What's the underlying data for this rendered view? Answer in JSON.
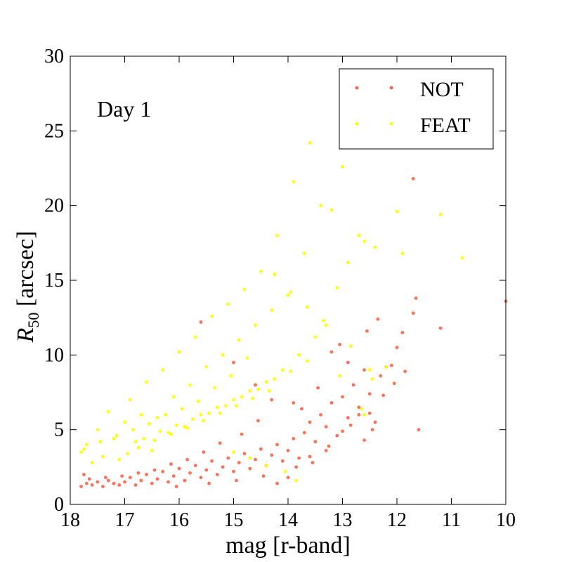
{
  "chart_data": {
    "type": "scatter",
    "annotation": "Day 1",
    "xlabel": "mag [r-band]",
    "ylabel_main": "R",
    "ylabel_sub": "50",
    "ylabel_rest": " [arcsec]",
    "xlim": [
      18,
      10
    ],
    "ylim": [
      0,
      30
    ],
    "x_inverted": true,
    "xticks": [
      "18",
      "17",
      "16",
      "15",
      "14",
      "13",
      "12",
      "11",
      "10"
    ],
    "yticks": [
      "0",
      "5",
      "10",
      "15",
      "20",
      "25",
      "30"
    ],
    "legend_position": "top-right",
    "series": [
      {
        "name": "NOT",
        "color": "#ff6347",
        "points": [
          [
            17.8,
            1.2
          ],
          [
            17.7,
            1.4
          ],
          [
            17.6,
            1.3
          ],
          [
            17.5,
            1.5
          ],
          [
            17.4,
            1.2
          ],
          [
            17.3,
            1.6
          ],
          [
            17.2,
            1.4
          ],
          [
            17.1,
            1.3
          ],
          [
            17.0,
            1.5
          ],
          [
            16.9,
            1.8
          ],
          [
            16.8,
            1.3
          ],
          [
            16.7,
            1.6
          ],
          [
            16.6,
            2.0
          ],
          [
            16.5,
            1.4
          ],
          [
            16.4,
            1.7
          ],
          [
            16.3,
            2.2
          ],
          [
            16.2,
            1.5
          ],
          [
            16.1,
            1.9
          ],
          [
            16.0,
            2.4
          ],
          [
            15.9,
            1.6
          ],
          [
            15.8,
            2.1
          ],
          [
            15.7,
            2.6
          ],
          [
            15.6,
            1.8
          ],
          [
            15.5,
            2.3
          ],
          [
            15.4,
            2.9
          ],
          [
            15.3,
            2.0
          ],
          [
            15.2,
            2.5
          ],
          [
            15.1,
            3.1
          ],
          [
            15.0,
            2.2
          ],
          [
            14.9,
            2.8
          ],
          [
            14.8,
            3.4
          ],
          [
            14.7,
            2.4
          ],
          [
            14.6,
            3.0
          ],
          [
            14.5,
            3.7
          ],
          [
            14.4,
            2.6
          ],
          [
            14.3,
            3.3
          ],
          [
            14.2,
            4.0
          ],
          [
            14.1,
            2.9
          ],
          [
            14.0,
            3.6
          ],
          [
            13.9,
            4.4
          ],
          [
            13.8,
            3.1
          ],
          [
            13.7,
            4.8
          ],
          [
            13.6,
            5.5
          ],
          [
            13.5,
            4.2
          ],
          [
            13.4,
            6.0
          ],
          [
            13.3,
            5.2
          ],
          [
            13.2,
            6.8
          ],
          [
            13.1,
            4.6
          ],
          [
            13.0,
            7.2
          ],
          [
            12.9,
            5.8
          ],
          [
            12.8,
            8.0
          ],
          [
            12.7,
            6.5
          ],
          [
            12.6,
            9.0
          ],
          [
            12.5,
            7.4
          ],
          [
            12.4,
            5.5
          ],
          [
            12.3,
            8.6
          ],
          [
            12.2,
            9.2
          ],
          [
            12.0,
            10.5
          ],
          [
            11.9,
            11.5
          ],
          [
            11.7,
            12.8
          ],
          [
            11.65,
            13.8
          ],
          [
            11.6,
            5.0
          ],
          [
            11.2,
            11.8
          ],
          [
            11.7,
            21.8
          ],
          [
            10.0,
            13.6
          ],
          [
            12.5,
            6.1
          ],
          [
            13.0,
            4.9
          ],
          [
            13.3,
            3.6
          ],
          [
            14.0,
            1.8
          ],
          [
            14.2,
            1.4
          ],
          [
            15.6,
            12.2
          ],
          [
            15.0,
            9.5
          ],
          [
            14.6,
            8.0
          ],
          [
            14.3,
            7.0
          ],
          [
            13.9,
            6.8
          ],
          [
            13.6,
            3.2
          ],
          [
            12.7,
            6.0
          ],
          [
            12.6,
            4.3
          ],
          [
            12.9,
            9.5
          ],
          [
            13.2,
            10.2
          ],
          [
            13.05,
            10.7
          ],
          [
            12.55,
            11.6
          ],
          [
            12.35,
            12.4
          ],
          [
            12.1,
            9.3
          ],
          [
            12.45,
            5.0
          ],
          [
            13.45,
            7.8
          ],
          [
            13.75,
            6.4
          ],
          [
            14.55,
            5.6
          ],
          [
            14.85,
            4.7
          ],
          [
            15.25,
            4.1
          ],
          [
            15.55,
            3.5
          ],
          [
            15.85,
            3.0
          ],
          [
            16.15,
            2.7
          ],
          [
            16.45,
            2.3
          ],
          [
            16.75,
            2.1
          ],
          [
            17.05,
            1.9
          ],
          [
            17.35,
            1.8
          ],
          [
            17.65,
            1.7
          ],
          [
            17.75,
            2.0
          ],
          [
            16.05,
            1.2
          ],
          [
            15.45,
            1.4
          ],
          [
            14.95,
            1.6
          ],
          [
            14.45,
            1.9
          ],
          [
            13.85,
            2.5
          ],
          [
            13.55,
            2.8
          ],
          [
            13.25,
            3.9
          ],
          [
            12.85,
            5.3
          ],
          [
            12.25,
            7.3
          ],
          [
            12.05,
            8.1
          ],
          [
            11.85,
            8.9
          ]
        ]
      },
      {
        "name": "FEAT",
        "color": "#ffff00",
        "points": [
          [
            17.8,
            3.5
          ],
          [
            17.7,
            4.0
          ],
          [
            17.6,
            2.8
          ],
          [
            17.5,
            5.0
          ],
          [
            17.4,
            3.2
          ],
          [
            17.3,
            6.2
          ],
          [
            17.2,
            4.4
          ],
          [
            17.1,
            3.0
          ],
          [
            17.0,
            5.5
          ],
          [
            16.9,
            7.0
          ],
          [
            16.8,
            4.2
          ],
          [
            16.7,
            6.0
          ],
          [
            16.6,
            8.2
          ],
          [
            16.5,
            3.6
          ],
          [
            16.4,
            5.8
          ],
          [
            16.3,
            9.0
          ],
          [
            16.2,
            4.8
          ],
          [
            16.1,
            7.2
          ],
          [
            16.0,
            10.2
          ],
          [
            15.9,
            5.2
          ],
          [
            15.8,
            8.0
          ],
          [
            15.7,
            11.2
          ],
          [
            15.6,
            6.0
          ],
          [
            15.5,
            9.2
          ],
          [
            15.4,
            12.6
          ],
          [
            15.3,
            6.5
          ],
          [
            15.2,
            10.0
          ],
          [
            15.1,
            13.4
          ],
          [
            15.0,
            7.0
          ],
          [
            14.9,
            11.0
          ],
          [
            14.8,
            14.4
          ],
          [
            14.7,
            7.6
          ],
          [
            14.6,
            12.0
          ],
          [
            14.5,
            15.6
          ],
          [
            14.4,
            8.2
          ],
          [
            14.3,
            13.0
          ],
          [
            14.2,
            18.0
          ],
          [
            14.1,
            9.0
          ],
          [
            14.0,
            14.0
          ],
          [
            13.9,
            21.6
          ],
          [
            13.8,
            10.0
          ],
          [
            13.7,
            16.8
          ],
          [
            13.6,
            24.2
          ],
          [
            13.5,
            11.2
          ],
          [
            13.4,
            20.0
          ],
          [
            13.3,
            12.0
          ],
          [
            13.2,
            19.7
          ],
          [
            13.1,
            14.5
          ],
          [
            13.0,
            22.6
          ],
          [
            12.9,
            16.2
          ],
          [
            12.7,
            18.0
          ],
          [
            12.6,
            17.6
          ],
          [
            12.5,
            9.0
          ],
          [
            12.4,
            17.2
          ],
          [
            12.2,
            9.2
          ],
          [
            12.0,
            19.6
          ],
          [
            11.9,
            16.8
          ],
          [
            11.2,
            19.4
          ],
          [
            10.8,
            16.5
          ],
          [
            12.6,
            6.0
          ],
          [
            14.25,
            15.4
          ],
          [
            13.95,
            14.2
          ],
          [
            13.65,
            13.2
          ],
          [
            13.35,
            12.3
          ],
          [
            13.05,
            8.6
          ],
          [
            12.85,
            10.6
          ],
          [
            12.65,
            6.4
          ],
          [
            12.45,
            8.4
          ],
          [
            14.75,
            9.8
          ],
          [
            15.05,
            8.6
          ],
          [
            15.35,
            7.8
          ],
          [
            15.65,
            6.9
          ],
          [
            15.95,
            6.4
          ],
          [
            16.25,
            6.0
          ],
          [
            16.55,
            5.4
          ],
          [
            16.85,
            5.0
          ],
          [
            17.15,
            4.6
          ],
          [
            17.45,
            4.2
          ],
          [
            17.75,
            3.7
          ],
          [
            16.65,
            4.4
          ],
          [
            16.35,
            4.9
          ],
          [
            16.05,
            5.3
          ],
          [
            15.75,
            5.7
          ],
          [
            15.45,
            6.1
          ],
          [
            15.15,
            6.6
          ],
          [
            14.85,
            7.2
          ],
          [
            14.55,
            7.7
          ],
          [
            14.25,
            8.4
          ],
          [
            13.95,
            8.9
          ],
          [
            13.65,
            9.6
          ],
          [
            16.95,
            3.4
          ],
          [
            16.75,
            3.8
          ],
          [
            16.45,
            4.3
          ],
          [
            16.15,
            4.7
          ],
          [
            15.85,
            5.1
          ],
          [
            15.55,
            5.6
          ],
          [
            15.25,
            6.1
          ],
          [
            14.95,
            6.6
          ],
          [
            14.65,
            7.1
          ],
          [
            14.35,
            7.6
          ],
          [
            13.85,
            1.6
          ],
          [
            14.05,
            2.2
          ],
          [
            14.4,
            2.6
          ],
          [
            14.7,
            3.1
          ],
          [
            15.0,
            3.5
          ]
        ]
      }
    ]
  }
}
